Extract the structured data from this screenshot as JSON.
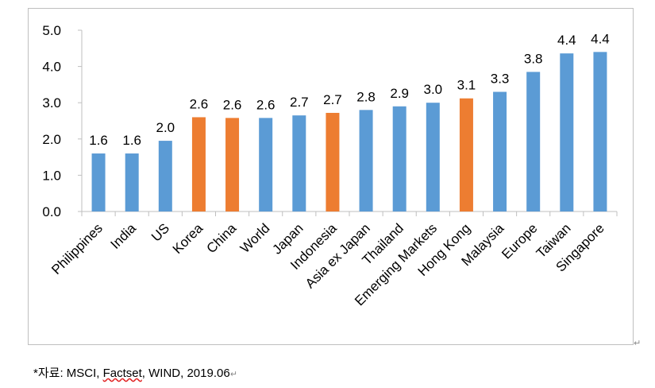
{
  "chart_data": {
    "type": "bar",
    "categories": [
      "Philippines",
      "India",
      "US",
      "Korea",
      "China",
      "World",
      "Japan",
      "Indonesia",
      "Asia ex Japan",
      "Thailand",
      "Emerging Markets",
      "Hong Kong",
      "Malaysia",
      "Europe",
      "Taiwan",
      "Singapore"
    ],
    "values": [
      1.6,
      1.6,
      2.0,
      2.6,
      2.6,
      2.6,
      2.7,
      2.7,
      2.8,
      2.9,
      3.0,
      3.1,
      3.3,
      3.8,
      4.4,
      4.4
    ],
    "data_labels": [
      "1.6",
      "1.6",
      "2.0",
      "2.6",
      "2.6",
      "2.6",
      "2.7",
      "2.7",
      "2.8",
      "2.9",
      "3.0",
      "3.1",
      "3.3",
      "3.8",
      "4.4",
      "4.4"
    ],
    "bar_values_plotted": [
      1.6,
      1.6,
      1.95,
      2.6,
      2.58,
      2.58,
      2.65,
      2.72,
      2.8,
      2.9,
      3.0,
      3.12,
      3.3,
      3.85,
      4.36,
      4.4
    ],
    "highlighted": [
      "Korea",
      "China",
      "Indonesia",
      "Hong Kong"
    ],
    "ylim": [
      0,
      5
    ],
    "yticks": [
      "0.0",
      "1.0",
      "2.0",
      "3.0",
      "4.0",
      "5.0"
    ],
    "ytick_values": [
      0,
      1,
      2,
      3,
      4,
      5
    ],
    "title": "",
    "xlabel": "",
    "ylabel": "",
    "grid": false,
    "legend": "none",
    "colors": {
      "default": "#5b9bd5",
      "highlight": "#ed7d31",
      "axis": "#bfbfbf",
      "text": "#000000"
    }
  },
  "source_note": {
    "prefix": "*자료: MSCI, ",
    "underlined": "Factset",
    "suffix": ", WIND, 2019.06"
  },
  "paragraph_mark": "↵"
}
